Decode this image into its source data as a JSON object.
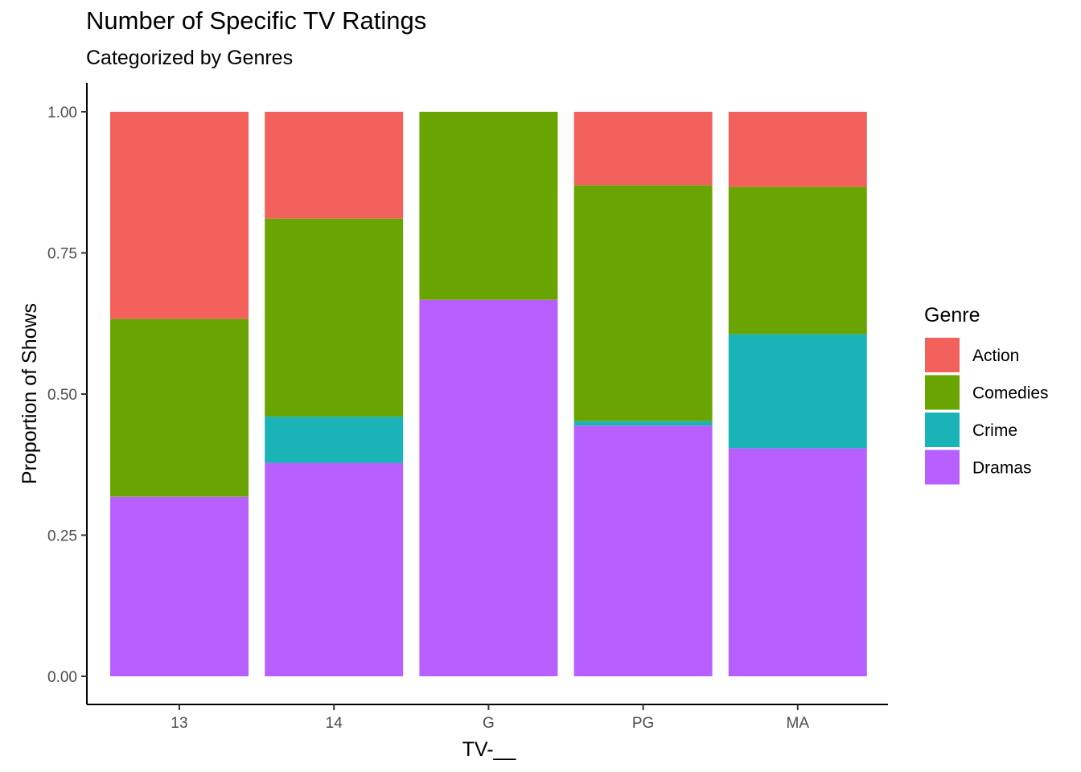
{
  "chart_data": {
    "type": "bar",
    "stacked": true,
    "title": "Number of Specific TV Ratings",
    "subtitle": "Categorized by Genres",
    "xlabel": "TV-__",
    "ylabel": "Proportion of Shows",
    "categories": [
      "13",
      "14",
      "G",
      "PG",
      "MA"
    ],
    "yticks": [
      "0.00",
      "0.25",
      "0.50",
      "0.75",
      "1.00"
    ],
    "ylim": [
      0,
      1
    ],
    "grid": false,
    "legend_title": "Genre",
    "legend_position": "right",
    "series": [
      {
        "name": "Dramas",
        "color": "#B760FF",
        "values": [
          0.318,
          0.378,
          0.667,
          0.444,
          0.404
        ]
      },
      {
        "name": "Crime",
        "color": "#1AB3B8",
        "values": [
          0.0,
          0.082,
          0.0,
          0.008,
          0.202
        ]
      },
      {
        "name": "Comedies",
        "color": "#6AA402",
        "values": [
          0.315,
          0.351,
          0.333,
          0.418,
          0.261
        ]
      },
      {
        "name": "Action",
        "color": "#F3615D",
        "values": [
          0.367,
          0.189,
          0.0,
          0.13,
          0.133
        ]
      }
    ],
    "legend_order": [
      "Action",
      "Comedies",
      "Crime",
      "Dramas"
    ]
  }
}
